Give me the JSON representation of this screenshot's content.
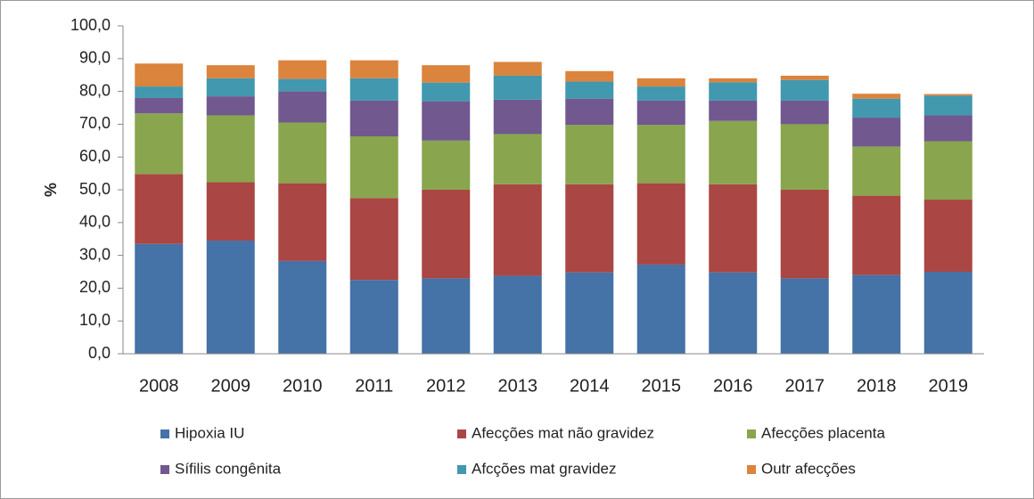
{
  "chart_data": {
    "type": "stacked_bar",
    "y_label": "%",
    "categories": [
      "2008",
      "2009",
      "2010",
      "2011",
      "2012",
      "2013",
      "2014",
      "2015",
      "2016",
      "2017",
      "2018",
      "2019"
    ],
    "series": [
      {
        "name": "Hipoxia IU",
        "color": "#4572a7",
        "values": [
          33.5,
          34.5,
          28.3,
          22.5,
          23.0,
          23.8,
          24.8,
          27.2,
          24.8,
          23.0,
          24.0,
          25.0
        ]
      },
      {
        "name": "Afecções mat não gravidez",
        "color": "#aa4643",
        "values": [
          21.3,
          17.8,
          23.7,
          25.0,
          27.0,
          27.9,
          26.9,
          24.8,
          26.9,
          27.0,
          24.2,
          22.0
        ]
      },
      {
        "name": "Afecções placenta",
        "color": "#89a54e",
        "values": [
          18.5,
          20.4,
          18.5,
          18.8,
          15.0,
          15.3,
          18.1,
          17.8,
          19.3,
          20.0,
          15.0,
          17.8
        ]
      },
      {
        "name": "Sífilis congênita",
        "color": "#71588f",
        "values": [
          4.7,
          5.8,
          9.5,
          10.9,
          12.0,
          10.5,
          8.0,
          7.4,
          6.2,
          7.2,
          8.8,
          7.9
        ]
      },
      {
        "name": "Afcções mat gravidez",
        "color": "#4198af",
        "values": [
          3.5,
          5.5,
          3.8,
          6.8,
          5.7,
          7.3,
          5.2,
          4.3,
          5.6,
          6.3,
          5.8,
          6.0
        ]
      },
      {
        "name": "Outr afecções",
        "color": "#db843d",
        "values": [
          7.0,
          4.0,
          5.7,
          5.5,
          5.3,
          4.2,
          3.2,
          2.5,
          1.2,
          1.3,
          1.5,
          0.5
        ]
      }
    ],
    "ylim": [
      0,
      100
    ],
    "yticks": [
      {
        "value": 0,
        "label": "0,0"
      },
      {
        "value": 10,
        "label": "10,0"
      },
      {
        "value": 20,
        "label": "20,0"
      },
      {
        "value": 30,
        "label": "30,0"
      },
      {
        "value": 40,
        "label": "40,0"
      },
      {
        "value": 50,
        "label": "50,0"
      },
      {
        "value": 60,
        "label": "60,0"
      },
      {
        "value": 70,
        "label": "70,0"
      },
      {
        "value": 80,
        "label": "80,0"
      },
      {
        "value": 90,
        "label": "90,0"
      },
      {
        "value": 100,
        "label": "100,0"
      }
    ],
    "grid": false,
    "legend": "bottom"
  }
}
